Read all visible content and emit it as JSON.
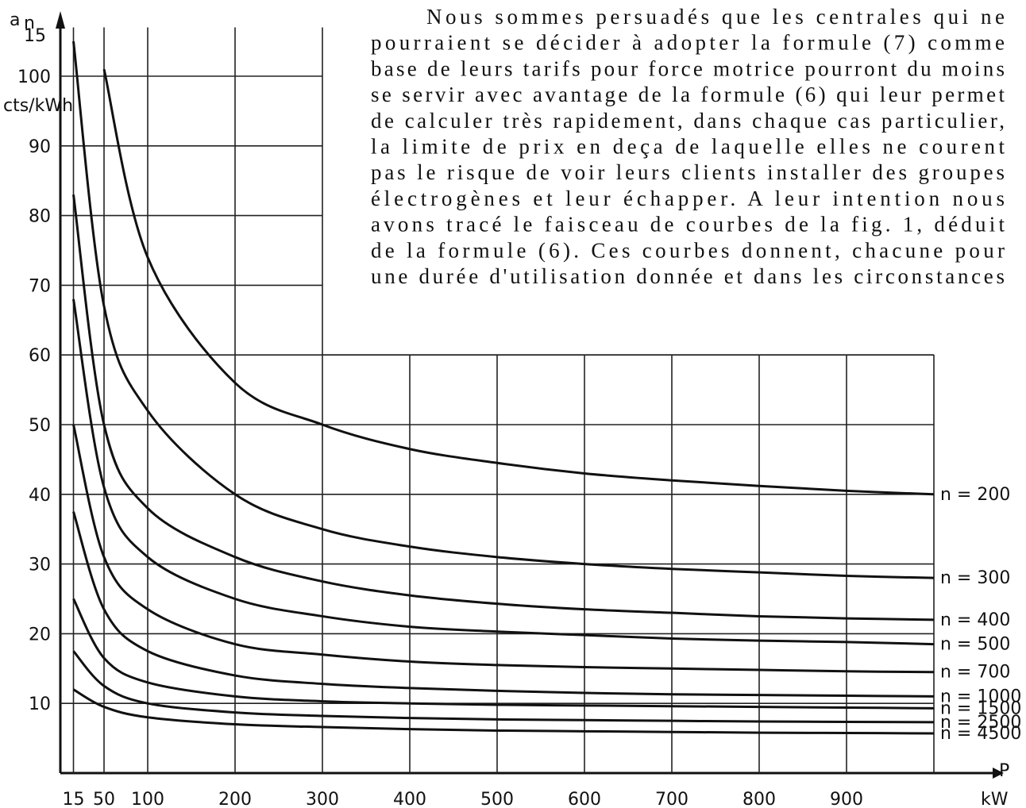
{
  "paragraph": [
    "Nous sommes persuadés que les centrales qui ne",
    "pourraient se décider à adopter la formule (7) comme",
    "base de leurs tarifs pour force motrice pourront du moins",
    "se servir avec avantage de la formule (6) qui leur permet",
    "de calculer très rapidement, dans chaque cas particulier,",
    "la limite de prix en deça de laquelle elles ne courent",
    "pas le risque de voir leurs clients installer des groupes",
    "électrogènes et leur échapper. A leur intention nous",
    "avons tracé le faisceau de courbes de la fig. 1, déduit",
    "de la formule (6). Ces courbes donnent, chacune pour",
    "une durée d'utilisation donnée et dans les circonstances"
  ],
  "chart_data": {
    "type": "line",
    "ylabel": {
      "symbol": "a",
      "index": "n",
      "sub": "15"
    },
    "y_unit": "cts/kWh",
    "xlabel": "P",
    "x_unit": "kW",
    "x": [
      15,
      50,
      100,
      200,
      300,
      400,
      500,
      600,
      700,
      800,
      900,
      1000
    ],
    "xlim": [
      0,
      1000
    ],
    "ylim": [
      0,
      107
    ],
    "xticks": [
      15,
      50,
      100,
      200,
      300,
      400,
      500,
      600,
      700,
      800,
      900
    ],
    "yticks": [
      10,
      20,
      30,
      40,
      50,
      60,
      70,
      80,
      90,
      100
    ],
    "grid": true,
    "color": "#111111",
    "series": [
      {
        "name": "n = 200",
        "values": [
          null,
          101,
          74,
          56,
          50,
          46.5,
          44.5,
          43,
          42,
          41.2,
          40.5,
          40
        ]
      },
      {
        "name": "n = 300",
        "values": [
          105,
          67,
          52,
          40,
          35,
          32.5,
          31,
          30,
          29.3,
          28.8,
          28.3,
          28
        ]
      },
      {
        "name": "n = 400",
        "values": [
          83,
          50,
          38,
          31,
          27.5,
          25.5,
          24.3,
          23.5,
          23,
          22.5,
          22.2,
          22
        ]
      },
      {
        "name": "n = 500",
        "values": [
          68,
          41,
          31,
          25,
          22.5,
          21,
          20.3,
          19.8,
          19.3,
          19,
          18.8,
          18.5
        ]
      },
      {
        "name": "n = 700",
        "values": [
          50,
          31,
          23.5,
          18.5,
          17,
          16,
          15.5,
          15.2,
          15,
          14.8,
          14.6,
          14.5
        ]
      },
      {
        "name": "n = 1000",
        "values": [
          37.5,
          23.5,
          17.5,
          14,
          12.8,
          12.2,
          11.8,
          11.5,
          11.3,
          11.2,
          11.1,
          11
        ]
      },
      {
        "name": "n = 1500",
        "values": [
          25,
          16.5,
          13,
          11,
          10.3,
          10,
          9.8,
          9.7,
          9.6,
          9.5,
          9.4,
          9.3
        ]
      },
      {
        "name": "n = 2500",
        "values": [
          17.5,
          12.5,
          10,
          8.7,
          8.2,
          7.9,
          7.7,
          7.6,
          7.5,
          7.4,
          7.35,
          7.3
        ]
      },
      {
        "name": "n = 4500",
        "values": [
          12,
          9.5,
          8,
          7,
          6.6,
          6.3,
          6.1,
          6,
          5.9,
          5.8,
          5.75,
          5.7
        ]
      }
    ]
  }
}
